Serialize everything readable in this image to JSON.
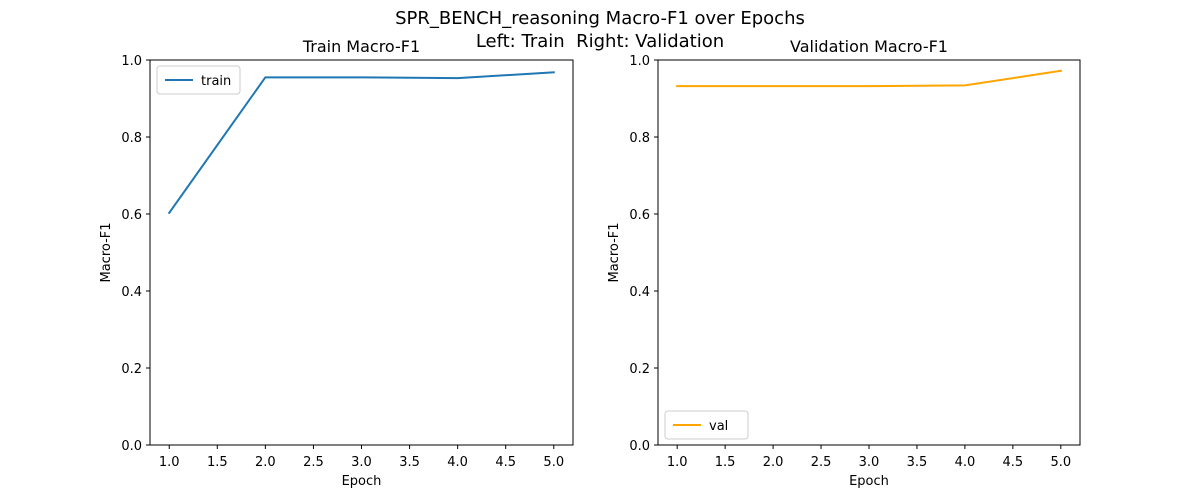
{
  "figure": {
    "title_line1": "SPR_BENCH_reasoning Macro-F1 over Epochs",
    "title_line2": "Left: Train  Right: Validation"
  },
  "chart_data": [
    {
      "type": "line",
      "title": "Train Macro-F1",
      "xlabel": "Epoch",
      "ylabel": "Macro-F1",
      "xlim": [
        0.8,
        5.2
      ],
      "ylim": [
        0.0,
        1.0
      ],
      "xticks": [
        "1.0",
        "1.5",
        "2.0",
        "2.5",
        "3.0",
        "3.5",
        "4.0",
        "4.5",
        "5.0"
      ],
      "yticks": [
        "0.0",
        "0.2",
        "0.4",
        "0.6",
        "0.8",
        "1.0"
      ],
      "grid": false,
      "legend_position": "upper-left",
      "series": [
        {
          "name": "train",
          "color": "#1f77b4",
          "x": [
            1,
            2,
            3,
            4,
            5
          ],
          "y": [
            0.603,
            0.955,
            0.955,
            0.953,
            0.968
          ]
        }
      ]
    },
    {
      "type": "line",
      "title": "Validation Macro-F1",
      "xlabel": "Epoch",
      "ylabel": "Macro-F1",
      "xlim": [
        0.8,
        5.2
      ],
      "ylim": [
        0.0,
        1.0
      ],
      "xticks": [
        "1.0",
        "1.5",
        "2.0",
        "2.5",
        "3.0",
        "3.5",
        "4.0",
        "4.5",
        "5.0"
      ],
      "yticks": [
        "0.0",
        "0.2",
        "0.4",
        "0.6",
        "0.8",
        "1.0"
      ],
      "grid": false,
      "legend_position": "lower-left",
      "series": [
        {
          "name": "val",
          "color": "#ffa500",
          "x": [
            1,
            2,
            3,
            4,
            5
          ],
          "y": [
            0.932,
            0.932,
            0.932,
            0.934,
            0.972
          ]
        }
      ]
    }
  ]
}
